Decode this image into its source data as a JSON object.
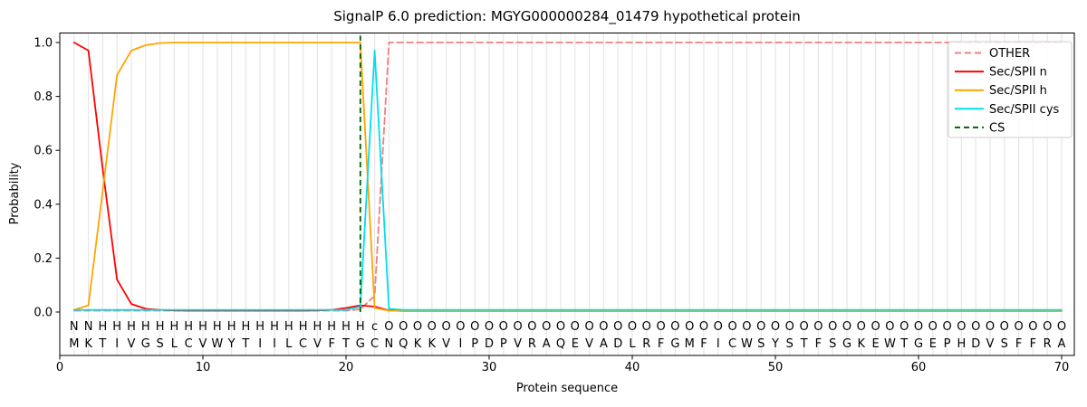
{
  "figure": {
    "title": "SignalP 6.0 prediction: MGYG000000284_01479 hypothetical protein",
    "xlabel": "Protein sequence",
    "ylabel": "Probability"
  },
  "colors": {
    "other": "#f08080",
    "n": "#ff0000",
    "h": "#ffa500",
    "cys": "#00dfee",
    "cs": "#006400",
    "grid": "#e7e7e7",
    "axis": "#000000",
    "letter_O": "#808080",
    "letter_c": "#00c8dc",
    "sequence_text": "#1a1a1a",
    "legend_border": "#cccccc"
  },
  "chart_data": {
    "type": "line",
    "title": "SignalP 6.0 prediction: MGYG000000284_01479 hypothetical protein",
    "xlabel": "Protein sequence",
    "ylabel": "Probability",
    "xlim": [
      0,
      70.9
    ],
    "ylim": [
      0,
      1.05
    ],
    "x_ticks": [
      0,
      10,
      20,
      30,
      40,
      50,
      60,
      70
    ],
    "x_tick_labels": [
      "0",
      "10",
      "20",
      "30",
      "40",
      "50",
      "60",
      "70"
    ],
    "y_ticks": [
      0.0,
      0.2,
      0.4,
      0.6,
      0.8,
      1.0
    ],
    "y_tick_labels": [
      "0.0",
      "0.2",
      "0.4",
      "0.6",
      "0.8",
      "1.0"
    ],
    "grid": "vertical line at every residue position 1-70",
    "legend_position": "upper right",
    "x": [
      1,
      2,
      3,
      4,
      5,
      6,
      7,
      8,
      9,
      10,
      11,
      12,
      13,
      14,
      15,
      16,
      17,
      18,
      19,
      20,
      21,
      22,
      23,
      24,
      25,
      26,
      27,
      28,
      29,
      30,
      31,
      32,
      33,
      34,
      35,
      36,
      37,
      38,
      39,
      40,
      41,
      42,
      43,
      44,
      45,
      46,
      47,
      48,
      49,
      50,
      51,
      52,
      53,
      54,
      55,
      56,
      57,
      58,
      59,
      60,
      61,
      62,
      63,
      64,
      65,
      66,
      67,
      68,
      69,
      70
    ],
    "series": [
      {
        "name": "OTHER",
        "style": "dashed",
        "values": [
          0.005,
          0.005,
          0.005,
          0.005,
          0.005,
          0.005,
          0.005,
          0.005,
          0.005,
          0.005,
          0.005,
          0.005,
          0.005,
          0.005,
          0.005,
          0.005,
          0.005,
          0.005,
          0.005,
          0.005,
          0.01,
          0.06,
          1.0,
          1.0,
          1.0,
          1.0,
          1.0,
          1.0,
          1.0,
          1.0,
          1.0,
          1.0,
          1.0,
          1.0,
          1.0,
          1.0,
          1.0,
          1.0,
          1.0,
          1.0,
          1.0,
          1.0,
          1.0,
          1.0,
          1.0,
          1.0,
          1.0,
          1.0,
          1.0,
          1.0,
          1.0,
          1.0,
          1.0,
          1.0,
          1.0,
          1.0,
          1.0,
          1.0,
          1.0,
          1.0,
          1.0,
          1.0,
          1.0,
          1.0,
          1.0,
          1.0,
          1.0,
          1.0,
          1.0,
          1.0
        ]
      },
      {
        "name": "Sec/SPII n",
        "style": "solid",
        "values": [
          1.0,
          0.97,
          0.53,
          0.12,
          0.03,
          0.012,
          0.008,
          0.006,
          0.005,
          0.005,
          0.005,
          0.005,
          0.005,
          0.005,
          0.005,
          0.005,
          0.005,
          0.006,
          0.008,
          0.015,
          0.025,
          0.02,
          0.006,
          0.004,
          0.004,
          0.004,
          0.004,
          0.004,
          0.004,
          0.004,
          0.004,
          0.004,
          0.004,
          0.004,
          0.004,
          0.004,
          0.004,
          0.004,
          0.004,
          0.004,
          0.004,
          0.004,
          0.004,
          0.004,
          0.004,
          0.004,
          0.004,
          0.004,
          0.004,
          0.004,
          0.004,
          0.004,
          0.004,
          0.004,
          0.004,
          0.004,
          0.004,
          0.004,
          0.004,
          0.004,
          0.004,
          0.004,
          0.004,
          0.004,
          0.004,
          0.004,
          0.004,
          0.004,
          0.004,
          0.004
        ]
      },
      {
        "name": "Sec/SPII h",
        "style": "solid",
        "values": [
          0.008,
          0.025,
          0.45,
          0.88,
          0.97,
          0.99,
          0.998,
          1.0,
          1.0,
          1.0,
          1.0,
          1.0,
          1.0,
          1.0,
          1.0,
          1.0,
          1.0,
          1.0,
          1.0,
          1.0,
          1.0,
          0.015,
          0.005,
          0.004,
          0.004,
          0.004,
          0.004,
          0.004,
          0.004,
          0.004,
          0.004,
          0.004,
          0.004,
          0.004,
          0.004,
          0.004,
          0.004,
          0.004,
          0.004,
          0.004,
          0.004,
          0.004,
          0.004,
          0.004,
          0.004,
          0.004,
          0.004,
          0.004,
          0.004,
          0.004,
          0.004,
          0.004,
          0.004,
          0.004,
          0.004,
          0.004,
          0.004,
          0.004,
          0.004,
          0.004,
          0.004,
          0.004,
          0.004,
          0.004,
          0.004,
          0.004,
          0.004,
          0.004,
          0.004,
          0.004
        ]
      },
      {
        "name": "Sec/SPII cys",
        "style": "solid",
        "values": [
          0.008,
          0.008,
          0.008,
          0.008,
          0.008,
          0.008,
          0.008,
          0.008,
          0.008,
          0.008,
          0.008,
          0.008,
          0.008,
          0.008,
          0.008,
          0.008,
          0.008,
          0.008,
          0.008,
          0.008,
          0.02,
          0.97,
          0.012,
          0.008,
          0.008,
          0.008,
          0.008,
          0.008,
          0.008,
          0.008,
          0.008,
          0.008,
          0.008,
          0.008,
          0.008,
          0.008,
          0.008,
          0.008,
          0.008,
          0.008,
          0.008,
          0.008,
          0.008,
          0.008,
          0.008,
          0.008,
          0.008,
          0.008,
          0.008,
          0.008,
          0.008,
          0.008,
          0.008,
          0.008,
          0.008,
          0.008,
          0.008,
          0.008,
          0.008,
          0.008,
          0.008,
          0.008,
          0.008,
          0.008,
          0.008,
          0.008,
          0.008,
          0.008,
          0.008,
          0.008
        ]
      }
    ],
    "cs_marker": {
      "name": "CS",
      "style": "dashed-vertical",
      "x": 21
    },
    "residue_labels": "NNHHHHHHHHHHHHHHHHHHHcOOOOOOOOOOOOOOOOOOOOOOOOOOOOOOOOOOOOOOOOOOOOOOOO",
    "sequence": "MKTIVGSLCVWYTIILCVFTGCNQKKVIPDPVRAQEVADLRFGMFICWSYSTFSGKEWTGEPHDVSFFRA"
  },
  "legend": {
    "items": [
      {
        "label": "OTHER"
      },
      {
        "label": "Sec/SPII n"
      },
      {
        "label": "Sec/SPII h"
      },
      {
        "label": "Sec/SPII cys"
      },
      {
        "label": "CS"
      }
    ]
  }
}
